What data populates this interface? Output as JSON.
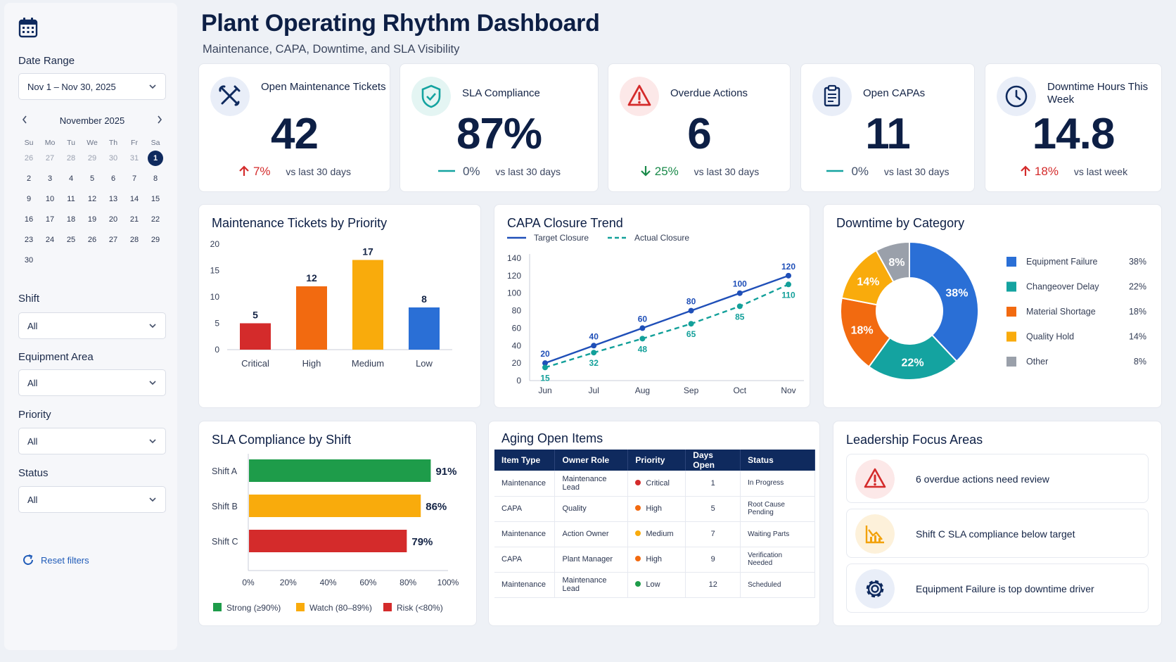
{
  "header": {
    "title": "Plant Operating Rhythm Dashboard",
    "subtitle": "Maintenance, CAPA, Downtime, and SLA Visibility"
  },
  "sidebar": {
    "date_range_label": "Date Range",
    "date_range_value": "Nov 1 – Nov 30, 2025",
    "calendar": {
      "month": "November 2025",
      "dow": [
        "Su",
        "Mo",
        "Tu",
        "We",
        "Th",
        "Fr",
        "Sa"
      ],
      "weeks": [
        [
          "26",
          "27",
          "28",
          "29",
          "30",
          "31",
          "1"
        ],
        [
          "2",
          "3",
          "4",
          "5",
          "6",
          "7",
          "8"
        ],
        [
          "9",
          "10",
          "11",
          "12",
          "13",
          "14",
          "15"
        ],
        [
          "16",
          "17",
          "18",
          "19",
          "20",
          "21",
          "22"
        ],
        [
          "23",
          "24",
          "25",
          "26",
          "27",
          "28",
          "29"
        ],
        [
          "30"
        ]
      ],
      "selected": "1"
    },
    "filters": [
      {
        "label": "Shift",
        "value": "All"
      },
      {
        "label": "Equipment Area",
        "value": "All"
      },
      {
        "label": "Priority",
        "value": "All"
      },
      {
        "label": "Status",
        "value": "All"
      }
    ],
    "reset_label": "Reset filters"
  },
  "kpis": [
    {
      "label": "Open Maintenance Tickets",
      "value": "42",
      "direction": "up",
      "pct": "7%",
      "compare": "vs last 30 days",
      "icon": "tools-icon"
    },
    {
      "label": "SLA Compliance",
      "value": "87%",
      "direction": "flat",
      "pct": "0%",
      "compare": "vs last 30 days",
      "icon": "shield-check-icon"
    },
    {
      "label": "Overdue Actions",
      "value": "6",
      "direction": "down",
      "pct": "25%",
      "compare": "vs last 30 days",
      "icon": "warning-icon"
    },
    {
      "label": "Open CAPAs",
      "value": "11",
      "direction": "flat",
      "pct": "0%",
      "compare": "vs last 30 days",
      "icon": "clipboard-icon"
    },
    {
      "label": "Downtime Hours This Week",
      "value": "14.8",
      "direction": "up",
      "pct": "18%",
      "compare": "vs last week",
      "icon": "clock-icon"
    }
  ],
  "panels": {
    "priority_title": "Maintenance Tickets by Priority",
    "capa_title": "CAPA Closure Trend",
    "downtime_title": "Downtime by Category",
    "sla_title": "SLA Compliance by Shift",
    "aging_title": "Aging Open Items",
    "focus_title": "Leadership Focus Areas"
  },
  "chart_data": [
    {
      "type": "bar",
      "title": "Maintenance Tickets by Priority",
      "categories": [
        "Critical",
        "High",
        "Medium",
        "Low"
      ],
      "values": [
        5,
        12,
        17,
        8
      ],
      "colors": [
        "#d42b2b",
        "#f26a10",
        "#f9ab0c",
        "#2a6fd6"
      ],
      "ylim": [
        0,
        20
      ],
      "yticks": [
        0,
        5,
        10,
        15,
        20
      ]
    },
    {
      "type": "line",
      "title": "CAPA Closure Trend",
      "x": [
        "Jun",
        "Jul",
        "Aug",
        "Sep",
        "Oct",
        "Nov"
      ],
      "series": [
        {
          "name": "Target Closure",
          "values": [
            20,
            40,
            60,
            80,
            100,
            120
          ],
          "color": "#1f4fb8",
          "dash": false
        },
        {
          "name": "Actual Closure",
          "values": [
            15,
            32,
            48,
            65,
            85,
            110
          ],
          "color": "#13a09a",
          "dash": true
        }
      ],
      "ylim": [
        0,
        140
      ],
      "yticks": [
        0,
        20,
        40,
        60,
        80,
        100,
        120,
        140
      ]
    },
    {
      "type": "pie",
      "title": "Downtime by Category",
      "slices": [
        {
          "label": "Equipment Failure",
          "value": 38,
          "color": "#2a6fd6"
        },
        {
          "label": "Changeover Delay",
          "value": 22,
          "color": "#14a3a0"
        },
        {
          "label": "Material Shortage",
          "value": 18,
          "color": "#f26a10"
        },
        {
          "label": "Quality Hold",
          "value": 14,
          "color": "#f9ab0c"
        },
        {
          "label": "Other",
          "value": 8,
          "color": "#9aa0aa"
        }
      ]
    },
    {
      "type": "bar",
      "title": "SLA Compliance by Shift",
      "categories": [
        "Shift A",
        "Shift B",
        "Shift C"
      ],
      "values": [
        91,
        86,
        79
      ],
      "colors": [
        "#1e9c4a",
        "#f9ab0c",
        "#d42b2b"
      ],
      "xlim": [
        0,
        100
      ],
      "xticks": [
        "0%",
        "20%",
        "40%",
        "60%",
        "80%",
        "100%"
      ],
      "legend": [
        {
          "label": "Strong (≥90%)",
          "color": "#1e9c4a"
        },
        {
          "label": "Watch (80–89%)",
          "color": "#f9ab0c"
        },
        {
          "label": "Risk (<80%)",
          "color": "#d42b2b"
        }
      ]
    }
  ],
  "aging": {
    "columns": [
      "Item Type",
      "Owner Role",
      "Priority",
      "Days Open",
      "Status"
    ],
    "rows": [
      [
        "Maintenance",
        "Maintenance Lead",
        "Critical",
        "1",
        "In Progress"
      ],
      [
        "CAPA",
        "Quality",
        "High",
        "5",
        "Root Cause Pending"
      ],
      [
        "Maintenance",
        "Action Owner",
        "Medium",
        "7",
        "Waiting Parts"
      ],
      [
        "CAPA",
        "Plant Manager",
        "High",
        "9",
        "Verification Needed"
      ],
      [
        "Maintenance",
        "Maintenance Lead",
        "Low",
        "12",
        "Scheduled"
      ]
    ],
    "priority_colors": {
      "Critical": "#d42b2b",
      "High": "#f26a10",
      "Medium": "#f9ab0c",
      "Low": "#1e9c4a"
    }
  },
  "focus": [
    {
      "text": "6 overdue actions need review",
      "icon": "warning-icon"
    },
    {
      "text": "Shift C SLA compliance below target",
      "icon": "chart-down-icon"
    },
    {
      "text": "Equipment Failure is top downtime driver",
      "icon": "gear-icon"
    }
  ]
}
